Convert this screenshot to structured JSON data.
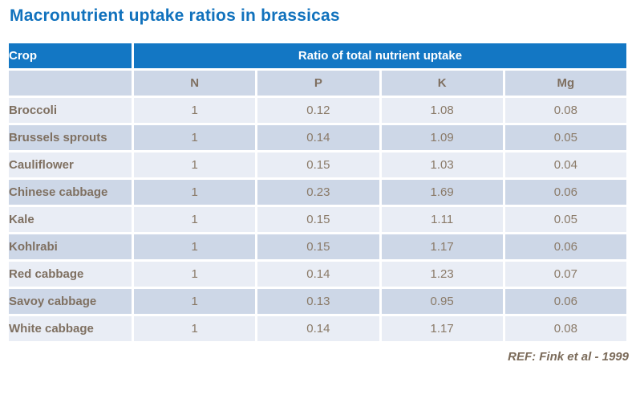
{
  "title": "Macronutrient uptake ratios in brassicas",
  "colors": {
    "title_blue": "#1172bd",
    "header_blue": "#1377c4",
    "row_light": "#e9edf5",
    "row_dark": "#cdd7e7",
    "data_text": "#8a7a68",
    "label_text": "#7f7061",
    "header_text": "#ffffff"
  },
  "table": {
    "crop_header": "Crop",
    "group_header": "Ratio of total nutrient uptake",
    "columns": [
      "N",
      "P",
      "K",
      "Mg"
    ],
    "rows": [
      {
        "crop": "Broccoli",
        "values": [
          "1",
          "0.12",
          "1.08",
          "0.08"
        ]
      },
      {
        "crop": "Brussels sprouts",
        "values": [
          "1",
          "0.14",
          "1.09",
          "0.05"
        ]
      },
      {
        "crop": "Cauliflower",
        "values": [
          "1",
          "0.15",
          "1.03",
          "0.04"
        ]
      },
      {
        "crop": "Chinese cabbage",
        "values": [
          "1",
          "0.23",
          "1.69",
          "0.06"
        ]
      },
      {
        "crop": "Kale",
        "values": [
          "1",
          "0.15",
          "1.11",
          "0.05"
        ]
      },
      {
        "crop": "Kohlrabi",
        "values": [
          "1",
          "0.15",
          "1.17",
          "0.06"
        ]
      },
      {
        "crop": "Red cabbage",
        "values": [
          "1",
          "0.14",
          "1.23",
          "0.07"
        ]
      },
      {
        "crop": "Savoy cabbage",
        "values": [
          "1",
          "0.13",
          "0.95",
          "0.06"
        ]
      },
      {
        "crop": "White cabbage",
        "values": [
          "1",
          "0.14",
          "1.17",
          "0.08"
        ]
      }
    ]
  },
  "footer": {
    "reference": "REF: Fink et al - 1999"
  },
  "chart_data": {
    "type": "table",
    "title": "Macronutrient uptake ratios in brassicas",
    "group_header": "Ratio of total nutrient uptake",
    "columns": [
      "Crop",
      "N",
      "P",
      "K",
      "Mg"
    ],
    "rows": [
      [
        "Broccoli",
        1,
        0.12,
        1.08,
        0.08
      ],
      [
        "Brussels sprouts",
        1,
        0.14,
        1.09,
        0.05
      ],
      [
        "Cauliflower",
        1,
        0.15,
        1.03,
        0.04
      ],
      [
        "Chinese cabbage",
        1,
        0.23,
        1.69,
        0.06
      ],
      [
        "Kale",
        1,
        0.15,
        1.11,
        0.05
      ],
      [
        "Kohlrabi",
        1,
        0.15,
        1.17,
        0.06
      ],
      [
        "Red cabbage",
        1,
        0.14,
        1.23,
        0.07
      ],
      [
        "Savoy cabbage",
        1,
        0.13,
        0.95,
        0.06
      ],
      [
        "White cabbage",
        1,
        0.14,
        1.17,
        0.08
      ]
    ],
    "reference": "REF: Fink et al - 1999"
  }
}
